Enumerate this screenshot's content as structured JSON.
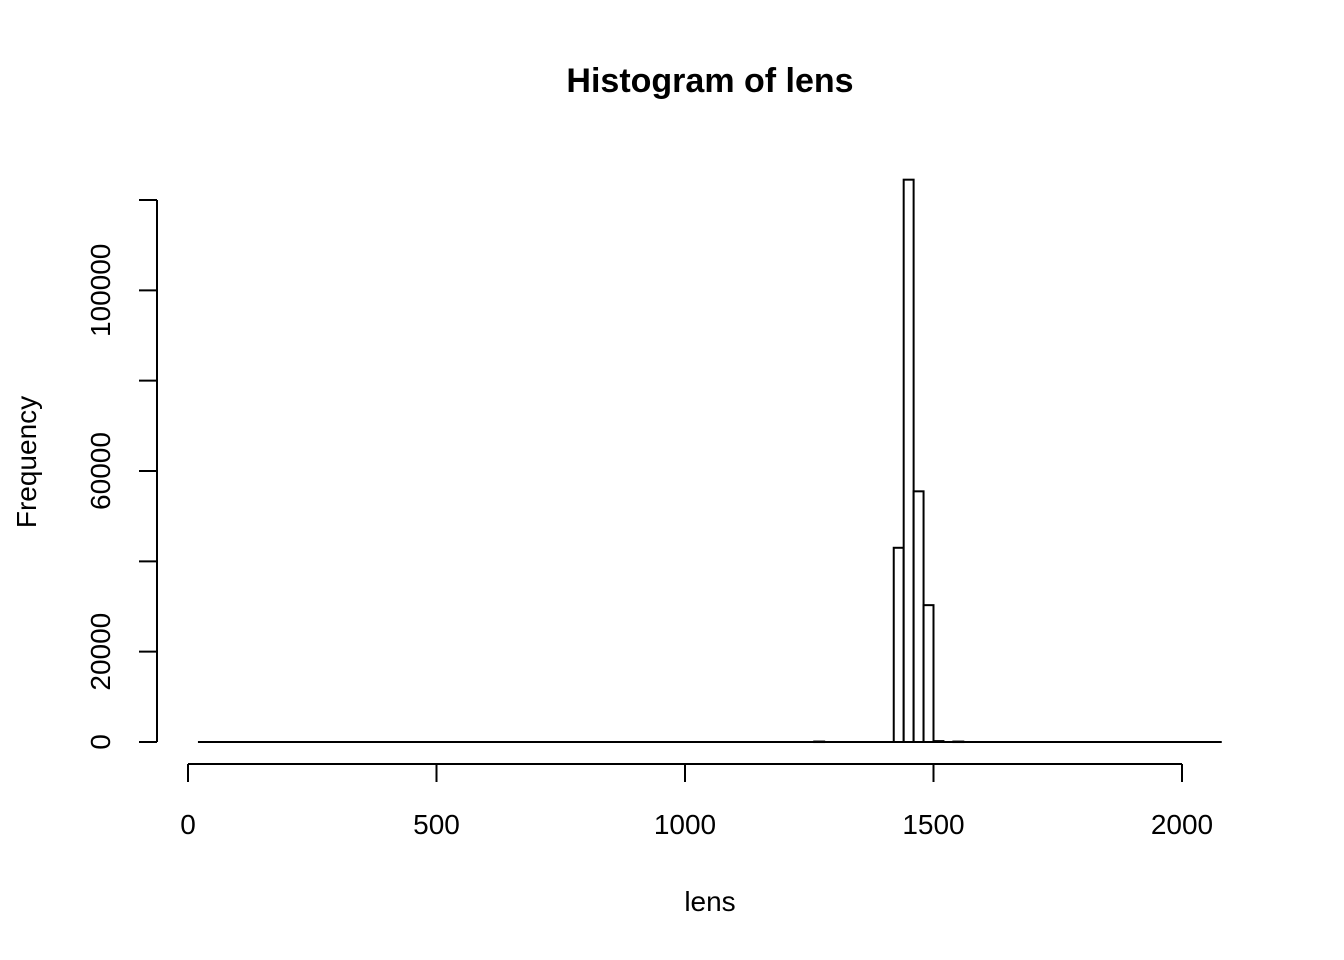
{
  "chart_data": {
    "type": "bar",
    "title": "Histogram of lens",
    "xlabel": "lens",
    "ylabel": "Frequency",
    "xlim": [
      0,
      2000
    ],
    "ylim": [
      0,
      120000
    ],
    "x_ticks": [
      0,
      500,
      1000,
      1500,
      2000
    ],
    "y_ticks": [
      0,
      20000,
      40000,
      60000,
      80000,
      100000,
      120000
    ],
    "x_tick_labels": [
      "0",
      "500",
      "1000",
      "1500",
      "2000"
    ],
    "y_tick_labels": [
      "0",
      "20000",
      "",
      "60000",
      "",
      "100000",
      ""
    ],
    "data_range": [
      20,
      2080
    ],
    "bin_width": 20,
    "bins": [
      {
        "start": 1260,
        "end": 1280,
        "count": 100
      },
      {
        "start": 1420,
        "end": 1440,
        "count": 43000
      },
      {
        "start": 1440,
        "end": 1460,
        "count": 124500
      },
      {
        "start": 1460,
        "end": 1480,
        "count": 55500
      },
      {
        "start": 1480,
        "end": 1500,
        "count": 30300
      },
      {
        "start": 1500,
        "end": 1520,
        "count": 200
      },
      {
        "start": 1540,
        "end": 1560,
        "count": 100
      }
    ],
    "colors": {
      "bar_fill": "#ffffff",
      "bar_stroke": "#000000",
      "axis": "#000000"
    }
  }
}
